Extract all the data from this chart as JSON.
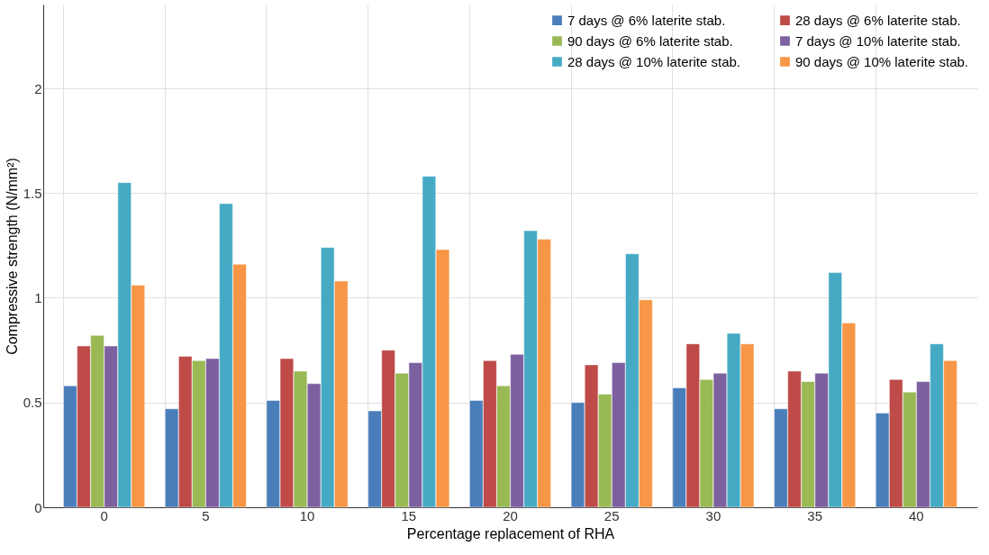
{
  "chart_data": {
    "type": "bar",
    "xlabel": "Percentage replacement of RHA",
    "ylabel": "Compressive strength (N/mm²)",
    "categories": [
      "0",
      "5",
      "10",
      "15",
      "20",
      "25",
      "30",
      "35",
      "40"
    ],
    "series": [
      {
        "name": "7 days @ 6% laterite stab.",
        "color": "#4a7ebb",
        "values": [
          0.58,
          0.47,
          0.51,
          0.46,
          0.51,
          0.5,
          0.57,
          0.47,
          0.45
        ]
      },
      {
        "name": "28 days @ 6% laterite stab.",
        "color": "#be4b48",
        "values": [
          0.77,
          0.72,
          0.71,
          0.75,
          0.7,
          0.68,
          0.78,
          0.65,
          0.61
        ]
      },
      {
        "name": "90 days @ 6% laterite stab.",
        "color": "#98b954",
        "values": [
          0.82,
          0.7,
          0.65,
          0.64,
          0.58,
          0.54,
          0.61,
          0.6,
          0.55
        ]
      },
      {
        "name": "7 days @ 10% laterite stab.",
        "color": "#7d60a0",
        "values": [
          0.77,
          0.71,
          0.59,
          0.69,
          0.73,
          0.69,
          0.64,
          0.64,
          0.6
        ]
      },
      {
        "name": "28 days @ 10% laterite stab.",
        "color": "#46aac5",
        "values": [
          1.55,
          1.45,
          1.24,
          1.58,
          1.32,
          1.21,
          0.83,
          1.12,
          0.78
        ]
      },
      {
        "name": "90 days @ 10% laterite stab.",
        "color": "#f79646",
        "values": [
          1.06,
          1.16,
          1.08,
          1.23,
          1.28,
          0.99,
          0.78,
          0.88,
          0.7
        ]
      }
    ],
    "ylim": [
      0,
      2.4
    ],
    "yticks": [
      0,
      0.5,
      1,
      1.5,
      2
    ],
    "grid": true,
    "legend": "top right"
  }
}
